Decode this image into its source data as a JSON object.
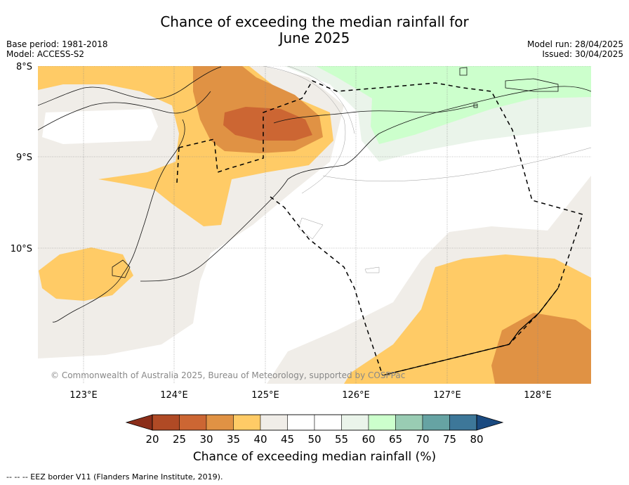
{
  "title": "Chance of exceeding the median rainfall for June 2025",
  "title_line1": "Chance of exceeding the median rainfall for",
  "title_line2": "June 2025",
  "meta_left": {
    "base_period": "Base period: 1981-2018",
    "model": "Model: ACCESS-S2"
  },
  "meta_right": {
    "model_run": "Model run: 28/04/2025",
    "issued": "Issued: 30/04/2025"
  },
  "map": {
    "lat_labels": [
      "8°S",
      "9°S",
      "10°S"
    ],
    "lon_labels": [
      "123°E",
      "124°E",
      "125°E",
      "126°E",
      "127°E",
      "128°E"
    ],
    "copyright": "© Commonwealth of Australia 2025, Bureau of Meteorology, supported by COSPPac",
    "category_colors": {
      "20-25": "#b04a25",
      "25-30": "#cc6633",
      "30-35": "#e09244",
      "35-40": "#ffcb66",
      "40-45": "#f0ede8",
      "45-55": "#ffffff",
      "55-60": "#eaf4ea",
      "60-65": "#ccffcc"
    }
  },
  "colorbar": {
    "ticks": [
      "20",
      "25",
      "30",
      "35",
      "40",
      "45",
      "50",
      "55",
      "60",
      "65",
      "70",
      "75",
      "80"
    ],
    "colors": [
      "#b04a25",
      "#cc6633",
      "#e09244",
      "#ffcb66",
      "#f0ede8",
      "#ffffff",
      "#ffffff",
      "#eaf4ea",
      "#ccffcc",
      "#99ccb3",
      "#66a3a3",
      "#3d7799"
    ],
    "under_color": "#8b2e1a",
    "over_color": "#1a4a80",
    "label": "Chance of exceeding median rainfall (%)"
  },
  "legend_note": "--  --  -- EEZ border V11 (Flanders Marine Institute, 2019)."
}
